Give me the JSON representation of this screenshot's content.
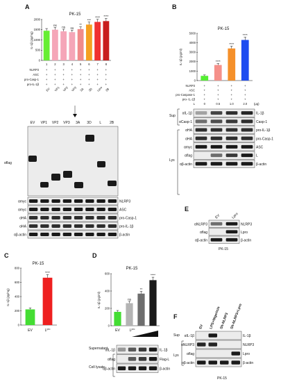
{
  "panels": {
    "A": {
      "letter": "A",
      "title": "PK-15",
      "chart_data": {
        "type": "bar",
        "ylabel": "IL-1β (pg/mg)",
        "ylim": [
          0,
          2000
        ],
        "yticks": [
          "0",
          "500",
          "1000",
          "1500",
          "2000"
        ],
        "categories": [
          "EV",
          "VP1",
          "VP2",
          "VP3",
          "3A",
          "3D",
          "Lpro",
          "2B"
        ],
        "values": [
          1450,
          1500,
          1420,
          1380,
          1530,
          1750,
          1880,
          1920
        ],
        "colors": [
          "#66ee33",
          "#f5a6b8",
          "#f5a6b8",
          "#f5a6b8",
          "#f08b8b",
          "#f5a020",
          "#f03030",
          "#c81e1e"
        ],
        "significance": [
          "",
          "ns",
          "ns",
          "ns",
          "**",
          "***",
          "****",
          "****"
        ]
      },
      "lane_numbers": [
        "1",
        "2",
        "3",
        "4",
        "5",
        "6",
        "7",
        "8"
      ],
      "rows": [
        {
          "label": "NLRP3",
          "marks": [
            "+",
            "+",
            "+",
            "+",
            "+",
            "+",
            "+",
            "+"
          ]
        },
        {
          "label": "ASC",
          "marks": [
            "+",
            "+",
            "+",
            "+",
            "+",
            "+",
            "+",
            "+"
          ]
        },
        {
          "label": "pro-Casp-1",
          "marks": [
            "+",
            "+",
            "+",
            "+",
            "+",
            "+",
            "+",
            "+"
          ]
        },
        {
          "label": "pro-IL-1β",
          "marks": [
            "+",
            "+",
            "+",
            "+",
            "+",
            "+",
            "+",
            "+"
          ]
        }
      ],
      "blot_lanes": [
        "EV",
        "VP1",
        "VP2",
        "VP3",
        "3A",
        "3D",
        "L",
        "2B"
      ],
      "blot_left": [
        "αflag",
        "αmyc",
        "αmyc",
        "αHA",
        "αHA",
        "αβ-actin"
      ],
      "blot_right": [
        "NLRP3",
        "ASC",
        "pro-Casp-1",
        "pro-IL-1β",
        "β-actin"
      ]
    },
    "B": {
      "letter": "B",
      "title": "PK-15",
      "chart_data": {
        "type": "bar",
        "ylabel": "IL-1β (pg/ml)",
        "ylim": [
          0,
          5000
        ],
        "yticks": [
          "0",
          "1000",
          "2000",
          "3000",
          "4000",
          "5000"
        ],
        "categories": [
          "0",
          "0.5",
          "1.0",
          "2.0"
        ],
        "values": [
          500,
          1650,
          3400,
          4300
        ],
        "colors": [
          "#55ee33",
          "#f5908a",
          "#f5902a",
          "#1e4cf0"
        ],
        "significance": [
          "",
          "****",
          "****",
          "****"
        ]
      },
      "rows": [
        {
          "label": "NLRP3",
          "marks": [
            "+",
            "+",
            "+",
            "+"
          ]
        },
        {
          "label": "ASC",
          "marks": [
            "+",
            "+",
            "+",
            "+"
          ]
        },
        {
          "label": "pro-Caspase-1",
          "marks": [
            "+",
            "+",
            "+",
            "+"
          ]
        },
        {
          "label": "pro- IL-1β",
          "marks": [
            "+",
            "+",
            "+",
            "+"
          ]
        }
      ],
      "dose_label": "L",
      "dose_values": [
        "0",
        "0.5",
        "1.0",
        "2.0"
      ],
      "dose_unit": "(μg)",
      "groups": [
        "Sup",
        "Lys"
      ],
      "blot_left": [
        "αIL-1β",
        "αCasp-1",
        "αHA",
        "αHA",
        "αmyc",
        "αflag",
        "αβ-actin"
      ],
      "blot_right": [
        "IL-1β",
        "Casp-1",
        "pro-IL-1β",
        "pro-Casp-1",
        "ASC",
        "L",
        "β-actin"
      ]
    },
    "C": {
      "letter": "C",
      "title": "PK-15",
      "chart_data": {
        "type": "bar",
        "ylabel": "IL-1β (pg/mg)",
        "ylim": [
          0,
          800
        ],
        "yticks": [
          "0",
          "200",
          "400",
          "600",
          "800"
        ],
        "categories": [
          "EV",
          "Lpro"
        ],
        "values": [
          220,
          665
        ],
        "colors": [
          "#44dd33",
          "#ee2020"
        ],
        "significance": [
          "",
          "****"
        ]
      },
      "cat_labels": [
        [
          "EV",
          ""
        ],
        [
          "L",
          "pro"
        ]
      ]
    },
    "D": {
      "letter": "D",
      "title": "PK-15",
      "chart_data": {
        "type": "bar",
        "ylabel": "IL-1β (pg/ml)",
        "ylim": [
          0,
          600
        ],
        "yticks": [
          "0",
          "200",
          "400",
          "600"
        ],
        "categories": [
          "EV",
          "Lpro",
          "Lpro",
          "Lpro"
        ],
        "values": [
          160,
          260,
          370,
          525
        ],
        "colors": [
          "#44dd33",
          "#b4b4b4",
          "#6e6e6e",
          "#1a1a1a"
        ],
        "significance": [
          "",
          "ns",
          "**",
          "****"
        ]
      },
      "cat_labels": [
        [
          "EV",
          ""
        ],
        [
          "L",
          "pro"
        ]
      ],
      "groups": [
        "Supernatant",
        "Cell lysate"
      ],
      "blot_left": [
        "αIL-1β",
        "αflag",
        "αβ-actin"
      ],
      "blot_right": [
        "IL-1β",
        "Flag-L",
        "β-actin"
      ]
    },
    "E": {
      "letter": "E",
      "lanes": [
        "EV",
        "Lpro"
      ],
      "blot_left": [
        "αNLRP3",
        "αflag",
        "αβ-actin"
      ],
      "blot_right": [
        "NLRP3",
        "Lpro",
        "β-actin"
      ],
      "caption": "PK-15"
    },
    "F": {
      "letter": "F",
      "lanes": [
        "EV",
        "LPS+Nigericin",
        "Sh-NLRP3",
        "Sh-NLRP3+Lpro"
      ],
      "groups": [
        "Sup",
        "Lys"
      ],
      "blot_left": [
        "αIL-1β",
        "αNLRP3",
        "αflag",
        "αβ-actin"
      ],
      "blot_right": [
        "IL-1β",
        "NLRP3",
        "Lpro",
        "β-actin"
      ],
      "caption": "PK-15"
    }
  }
}
